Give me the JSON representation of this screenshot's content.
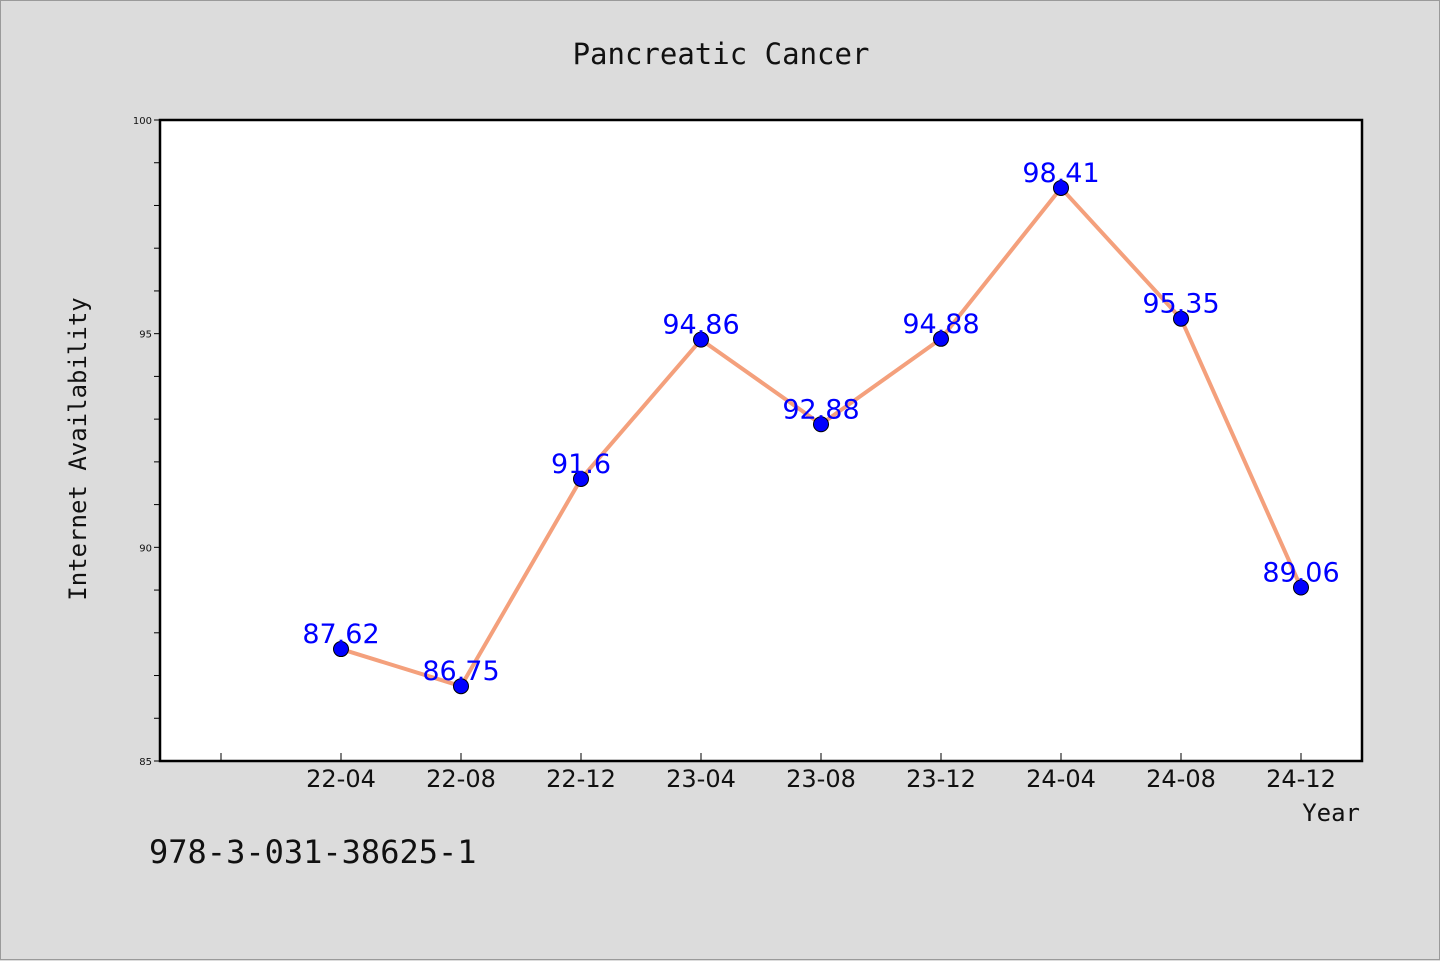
{
  "chart_data": {
    "type": "line",
    "title": "Pancreatic Cancer",
    "xlabel": "Year",
    "ylabel": "Internet Availability",
    "categories": [
      "22-04",
      "22-08",
      "22-12",
      "23-04",
      "23-08",
      "23-12",
      "24-04",
      "24-08",
      "24-12"
    ],
    "series": [
      {
        "values": [
          87.62,
          86.75,
          91.6,
          94.86,
          92.88,
          94.88,
          98.41,
          95.35,
          89.06
        ],
        "labels": [
          "87.62",
          "86.75",
          "91.6",
          "94.86",
          "92.88",
          "94.88",
          "98.41",
          "95.35",
          "89.06"
        ]
      }
    ],
    "ylim": [
      85,
      100
    ],
    "yticks": [
      85,
      90,
      95,
      100
    ],
    "grid": false,
    "legend": "none",
    "colors": {
      "line": "#f4a07c",
      "marker": "#0000ff",
      "label": "#0000ff",
      "background": "#dcdcdc",
      "plot_background": "#ffffff"
    }
  },
  "footer": {
    "code": "978-3-031-38625-1"
  }
}
